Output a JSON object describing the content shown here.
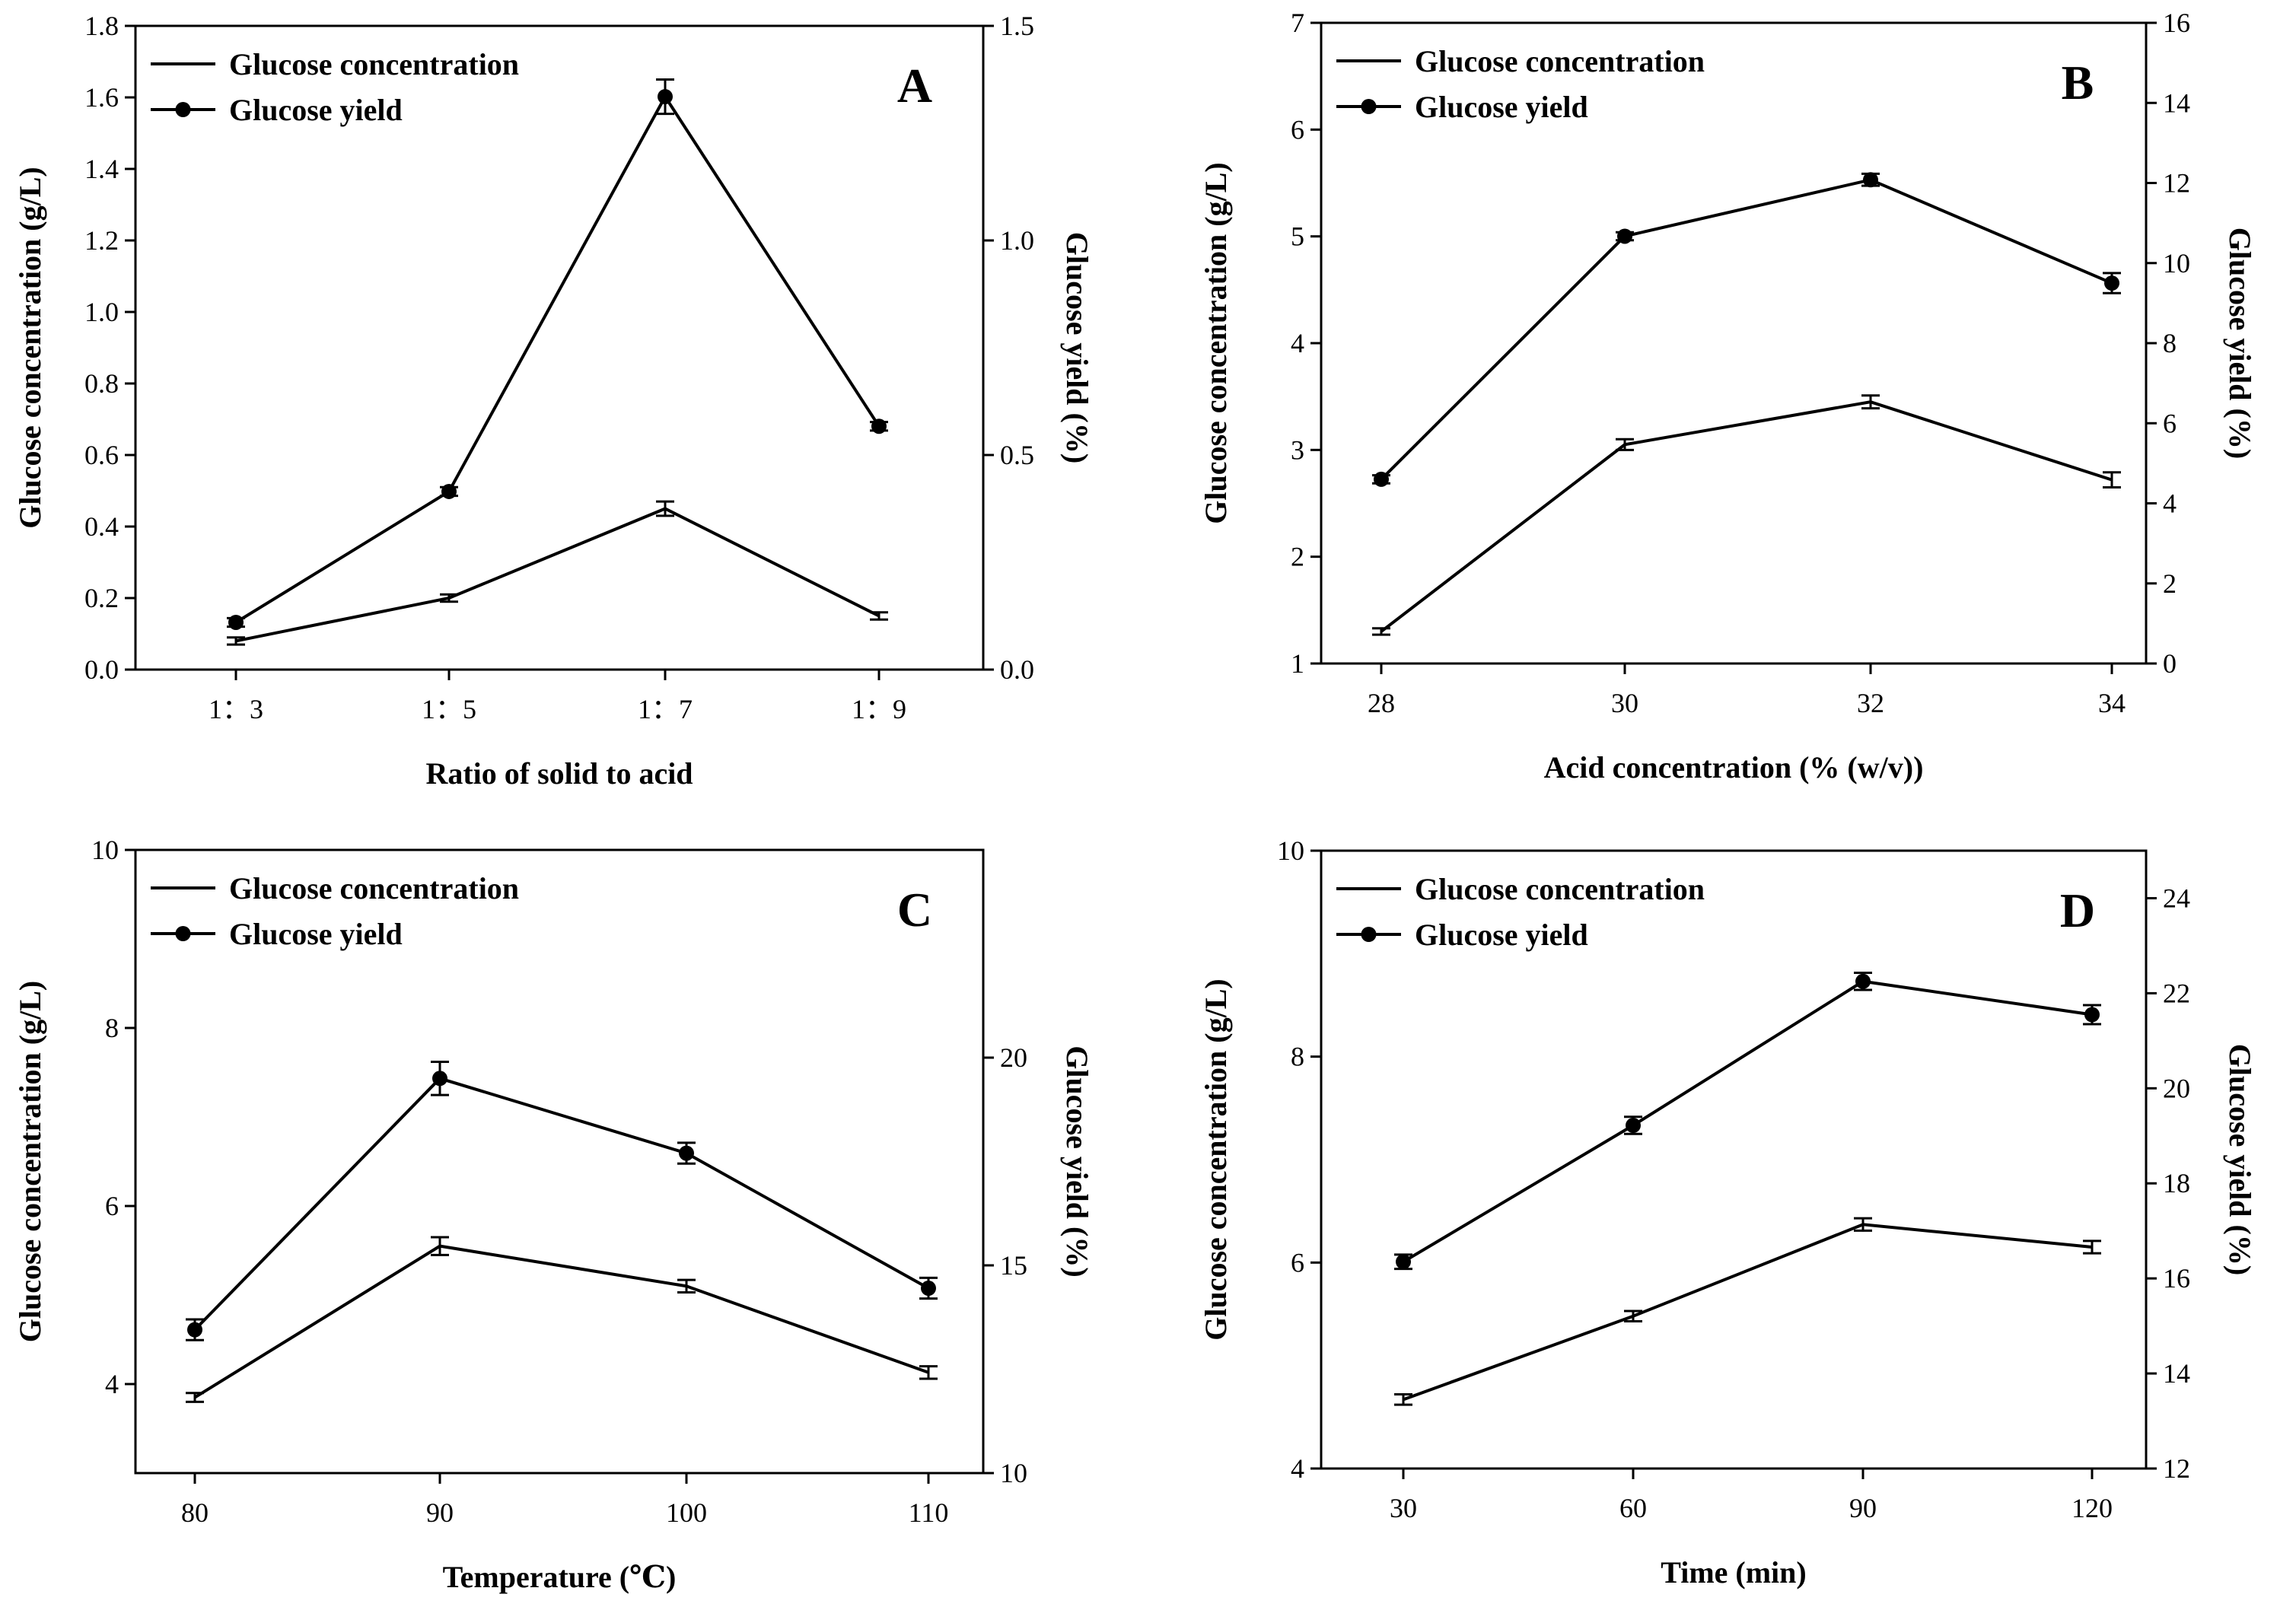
{
  "chart_data": [
    {
      "type": "line",
      "panel_label": "A",
      "categories": [
        "1：3",
        "1：5",
        "1：7",
        "1：9"
      ],
      "xlabel": "Ratio of solid to acid",
      "ylabel": "Glucose concentration (g/L)",
      "y2label": "Glucose yield (%)",
      "ylim": [
        0,
        1.8
      ],
      "y2lim": [
        0,
        1.5
      ],
      "yticks": [
        "0.0",
        "0.2",
        "0.4",
        "0.6",
        "0.8",
        "1.0",
        "1.2",
        "1.4",
        "1.6",
        "1.8"
      ],
      "y2ticks": [
        "0.0",
        "0.5",
        "1.0",
        "1.5"
      ],
      "legend_position": "top-left",
      "series": [
        {
          "name": "Glucose concentration",
          "axis": "left",
          "marker": "none",
          "values": [
            0.08,
            0.2,
            0.45,
            0.15
          ],
          "errors": [
            0.01,
            0.01,
            0.02,
            0.01
          ]
        },
        {
          "name": "Glucose yield",
          "axis": "right",
          "marker": "circle",
          "values": [
            0.11,
            0.415,
            1.335,
            0.567
          ],
          "errors": [
            0.01,
            0.01,
            0.04,
            0.01
          ]
        }
      ]
    },
    {
      "type": "line",
      "panel_label": "B",
      "categories": [
        "28",
        "30",
        "32",
        "34"
      ],
      "xlabel": "Acid concentration (% (w/v))",
      "ylabel": "Glucose concentration (g/L)",
      "y2label": "Glucose yield (%)",
      "ylim": [
        1,
        7
      ],
      "y2lim": [
        0,
        16
      ],
      "yticks": [
        "1",
        "2",
        "3",
        "4",
        "5",
        "6",
        "7"
      ],
      "y2ticks": [
        "0",
        "2",
        "4",
        "6",
        "8",
        "10",
        "12",
        "14",
        "16"
      ],
      "legend_position": "top-left",
      "series": [
        {
          "name": "Glucose concentration",
          "axis": "left",
          "marker": "none",
          "values": [
            1.3,
            3.05,
            3.45,
            2.72
          ],
          "errors": [
            0.03,
            0.05,
            0.06,
            0.07
          ]
        },
        {
          "name": "Glucose yield",
          "axis": "right",
          "marker": "circle",
          "values": [
            4.6,
            10.67,
            12.08,
            9.5
          ],
          "errors": [
            0.1,
            0.1,
            0.15,
            0.25
          ]
        }
      ]
    },
    {
      "type": "line",
      "panel_label": "C",
      "categories": [
        "80",
        "90",
        "100",
        "110"
      ],
      "xlabel": "Temperature (℃)",
      "ylabel": "Glucose concentration (g/L)",
      "y2label": "Glucose yield (%)",
      "ylim": [
        3,
        10
      ],
      "y2lim": [
        10,
        25
      ],
      "yticks": [
        "4",
        "6",
        "8",
        "10"
      ],
      "y2ticks": [
        "10",
        "15",
        "20"
      ],
      "legend_position": "top-left",
      "series": [
        {
          "name": "Glucose concentration",
          "axis": "left",
          "marker": "none",
          "values": [
            3.85,
            5.55,
            5.1,
            4.13
          ],
          "errors": [
            0.05,
            0.1,
            0.07,
            0.07
          ]
        },
        {
          "name": "Glucose yield",
          "axis": "right",
          "marker": "circle",
          "values": [
            13.45,
            19.5,
            17.7,
            14.45
          ],
          "errors": [
            0.25,
            0.4,
            0.25,
            0.25
          ]
        }
      ]
    },
    {
      "type": "line",
      "panel_label": "D",
      "categories": [
        "30",
        "60",
        "90",
        "120"
      ],
      "xlabel": "Time (min)",
      "ylabel": "Glucose concentration (g/L)",
      "y2label": "Glucose yield (%)",
      "ylim": [
        4,
        10
      ],
      "y2lim": [
        12,
        25
      ],
      "yticks": [
        "4",
        "6",
        "8",
        "10"
      ],
      "y2ticks": [
        "12",
        "14",
        "16",
        "18",
        "20",
        "22",
        "24"
      ],
      "legend_position": "top-left",
      "series": [
        {
          "name": "Glucose concentration",
          "axis": "left",
          "marker": "none",
          "values": [
            4.67,
            5.48,
            6.37,
            6.15
          ],
          "errors": [
            0.05,
            0.05,
            0.06,
            0.06
          ]
        },
        {
          "name": "Glucose yield",
          "axis": "right",
          "marker": "circle",
          "values": [
            16.35,
            19.22,
            22.25,
            21.55
          ],
          "errors": [
            0.15,
            0.18,
            0.18,
            0.2
          ]
        }
      ]
    }
  ]
}
